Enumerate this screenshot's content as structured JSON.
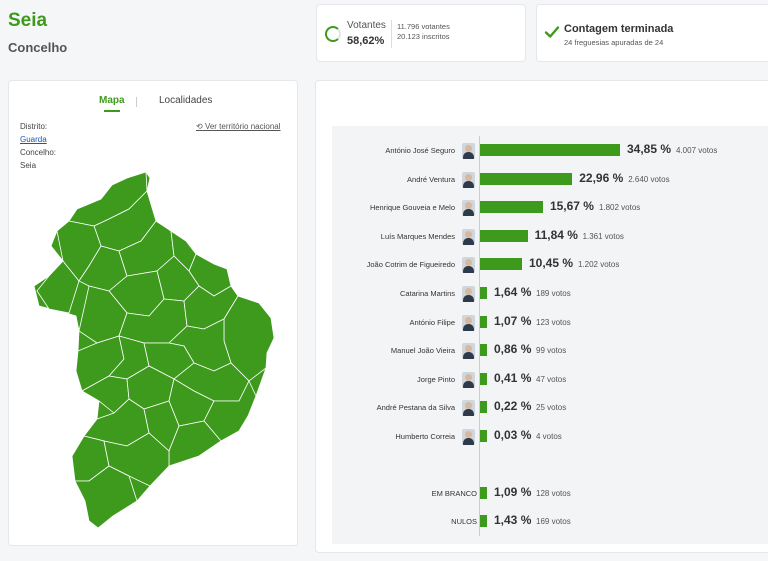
{
  "header": {
    "title": "Seia",
    "subtitle": "Concelho"
  },
  "votantes": {
    "label": "Votantes",
    "percent": "58,62%",
    "votantes_count": "11.796 votantes",
    "inscritos": "20.123 inscritos"
  },
  "contagem": {
    "title": "Contagem terminada",
    "subtitle": "24 freguesias apuradas de 24"
  },
  "left": {
    "tabs": {
      "mapa": "Mapa",
      "localidades": "Localidades"
    },
    "distrito_label": "Distrito:",
    "distrito_value": "Guarda",
    "concelho_label": "Concelho:",
    "concelho_value": "Seia",
    "ver_nacional": "Ver território nacional",
    "map_color": "#3d9a1c"
  },
  "results": {
    "accent": "#3d9a1c",
    "candidates": [
      {
        "name": "António José Seguro",
        "pct": 34.85,
        "pct_label": "34,85 %",
        "votes": "4.007 votos"
      },
      {
        "name": "André Ventura",
        "pct": 22.96,
        "pct_label": "22,96 %",
        "votes": "2.640 votos"
      },
      {
        "name": "Henrique Gouveia e Melo",
        "pct": 15.67,
        "pct_label": "15,67 %",
        "votes": "1.802 votos"
      },
      {
        "name": "Luís Marques Mendes",
        "pct": 11.84,
        "pct_label": "11,84 %",
        "votes": "1.361 votos"
      },
      {
        "name": "João Cotrim de Figueiredo",
        "pct": 10.45,
        "pct_label": "10,45 %",
        "votes": "1.202 votos"
      },
      {
        "name": "Catarina Martins",
        "pct": 1.64,
        "pct_label": "1,64 %",
        "votes": "189 votos"
      },
      {
        "name": "António Filipe",
        "pct": 1.07,
        "pct_label": "1,07 %",
        "votes": "123 votos"
      },
      {
        "name": "Manuel João Vieira",
        "pct": 0.86,
        "pct_label": "0,86 %",
        "votes": "99 votos"
      },
      {
        "name": "Jorge Pinto",
        "pct": 0.41,
        "pct_label": "0,41 %",
        "votes": "47 votos"
      },
      {
        "name": "André Pestana da Silva",
        "pct": 0.22,
        "pct_label": "0,22 %",
        "votes": "25 votos"
      },
      {
        "name": "Humberto Correia",
        "pct": 0.03,
        "pct_label": "0,03 %",
        "votes": "4 votos"
      }
    ],
    "others": [
      {
        "name": "EM BRANCO",
        "pct": 1.09,
        "pct_label": "1,09 %",
        "votes": "128 votos"
      },
      {
        "name": "NULOS",
        "pct": 1.43,
        "pct_label": "1,43 %",
        "votes": "169 votos"
      }
    ]
  }
}
